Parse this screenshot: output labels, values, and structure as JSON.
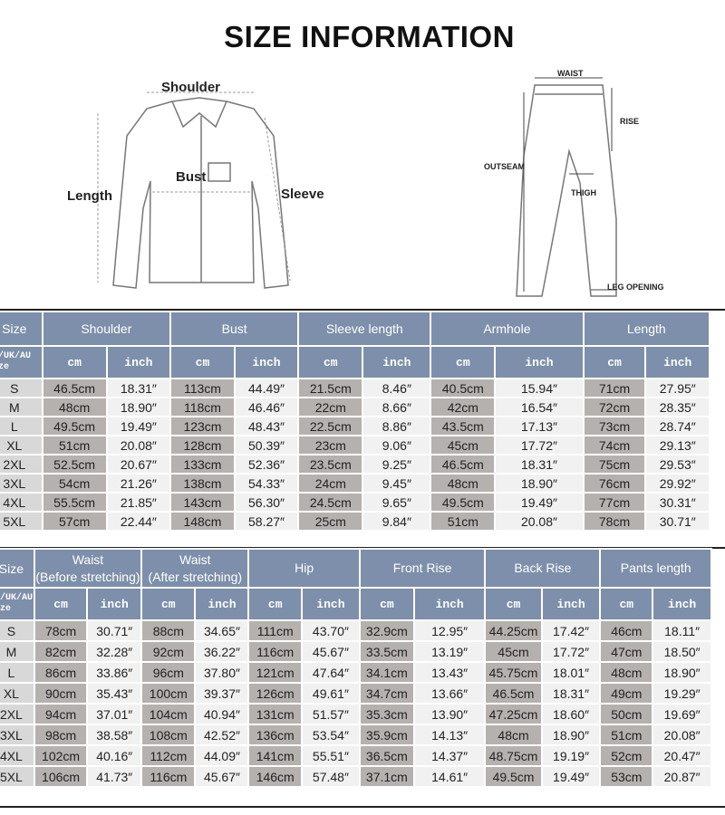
{
  "title": "SIZE INFORMATION",
  "shirt_diagram": {
    "labels": {
      "shoulder": "Shoulder",
      "bust": "Bust",
      "length": "Length",
      "sleeve": "Sleeve"
    }
  },
  "pants_diagram": {
    "labels": {
      "waist": "WAIST",
      "rise": "RISE",
      "outseam": "OUTSEAM",
      "thigh": "THIGH",
      "leg_opening": "LEG OPENING"
    }
  },
  "units": {
    "cm": "cm",
    "inch": "inch"
  },
  "top_table": {
    "size_header": "Size",
    "size_sub": "US/UK/AU Size",
    "columns": [
      "Shoulder",
      "Bust",
      "Sleeve length",
      "Armhole",
      "Length"
    ],
    "rows": [
      {
        "size": "S",
        "values": [
          "46.5cm",
          "18.31″",
          "113cm",
          "44.49″",
          "21.5cm",
          "8.46″",
          "40.5cm",
          "15.94″",
          "71cm",
          "27.95″"
        ]
      },
      {
        "size": "M",
        "values": [
          "48cm",
          "18.90″",
          "118cm",
          "46.46″",
          "22cm",
          "8.66″",
          "42cm",
          "16.54″",
          "72cm",
          "28.35″"
        ]
      },
      {
        "size": "L",
        "values": [
          "49.5cm",
          "19.49″",
          "123cm",
          "48.43″",
          "22.5cm",
          "8.86″",
          "43.5cm",
          "17.13″",
          "73cm",
          "28.74″"
        ]
      },
      {
        "size": "XL",
        "values": [
          "51cm",
          "20.08″",
          "128cm",
          "50.39″",
          "23cm",
          "9.06″",
          "45cm",
          "17.72″",
          "74cm",
          "29.13″"
        ]
      },
      {
        "size": "2XL",
        "values": [
          "52.5cm",
          "20.67″",
          "133cm",
          "52.36″",
          "23.5cm",
          "9.25″",
          "46.5cm",
          "18.31″",
          "75cm",
          "29.53″"
        ]
      },
      {
        "size": "3XL",
        "values": [
          "54cm",
          "21.26″",
          "138cm",
          "54.33″",
          "24cm",
          "9.45″",
          "48cm",
          "18.90″",
          "76cm",
          "29.92″"
        ]
      },
      {
        "size": "4XL",
        "values": [
          "55.5cm",
          "21.85″",
          "143cm",
          "56.30″",
          "24.5cm",
          "9.65″",
          "49.5cm",
          "19.49″",
          "77cm",
          "30.31″"
        ]
      },
      {
        "size": "5XL",
        "values": [
          "57cm",
          "22.44″",
          "148cm",
          "58.27″",
          "25cm",
          "9.84″",
          "51cm",
          "20.08″",
          "78cm",
          "30.71″"
        ]
      }
    ]
  },
  "bottom_table": {
    "size_header": "Size",
    "size_sub": "US/UK/AU Size",
    "columns": [
      "Waist\n(Before stretching)",
      "Waist\n(After stretching)",
      "Hip",
      "Front Rise",
      "Back Rise",
      "Pants length"
    ],
    "rows": [
      {
        "size": "S",
        "values": [
          "78cm",
          "30.71″",
          "88cm",
          "34.65″",
          "111cm",
          "43.70″",
          "32.9cm",
          "12.95″",
          "44.25cm",
          "17.42″",
          "46cm",
          "18.11″"
        ]
      },
      {
        "size": "M",
        "values": [
          "82cm",
          "32.28″",
          "92cm",
          "36.22″",
          "116cm",
          "45.67″",
          "33.5cm",
          "13.19″",
          "45cm",
          "17.72″",
          "47cm",
          "18.50″"
        ]
      },
      {
        "size": "L",
        "values": [
          "86cm",
          "33.86″",
          "96cm",
          "37.80″",
          "121cm",
          "47.64″",
          "34.1cm",
          "13.43″",
          "45.75cm",
          "18.01″",
          "48cm",
          "18.90″"
        ]
      },
      {
        "size": "XL",
        "values": [
          "90cm",
          "35.43″",
          "100cm",
          "39.37″",
          "126cm",
          "49.61″",
          "34.7cm",
          "13.66″",
          "46.5cm",
          "18.31″",
          "49cm",
          "19.29″"
        ]
      },
      {
        "size": "2XL",
        "values": [
          "94cm",
          "37.01″",
          "104cm",
          "40.94″",
          "131cm",
          "51.57″",
          "35.3cm",
          "13.90″",
          "47.25cm",
          "18.60″",
          "50cm",
          "19.69″"
        ]
      },
      {
        "size": "3XL",
        "values": [
          "98cm",
          "38.58″",
          "108cm",
          "42.52″",
          "136cm",
          "53.54″",
          "35.9cm",
          "14.13″",
          "48cm",
          "18.90″",
          "51cm",
          "20.08″"
        ]
      },
      {
        "size": "4XL",
        "values": [
          "102cm",
          "40.16″",
          "112cm",
          "44.09″",
          "141cm",
          "55.51″",
          "36.5cm",
          "14.37″",
          "48.75cm",
          "19.19″",
          "52cm",
          "20.47″"
        ]
      },
      {
        "size": "5XL",
        "values": [
          "106cm",
          "41.73″",
          "116cm",
          "45.67″",
          "146cm",
          "57.48″",
          "37.1cm",
          "14.61″",
          "49.5cm",
          "19.49″",
          "53cm",
          "20.87″"
        ]
      }
    ]
  },
  "colors": {
    "header": "#7d8faa",
    "cm_cell": "#b5b1ae",
    "inch_cell": "#f1f1f1",
    "size_cell": "#d8d8d8"
  }
}
